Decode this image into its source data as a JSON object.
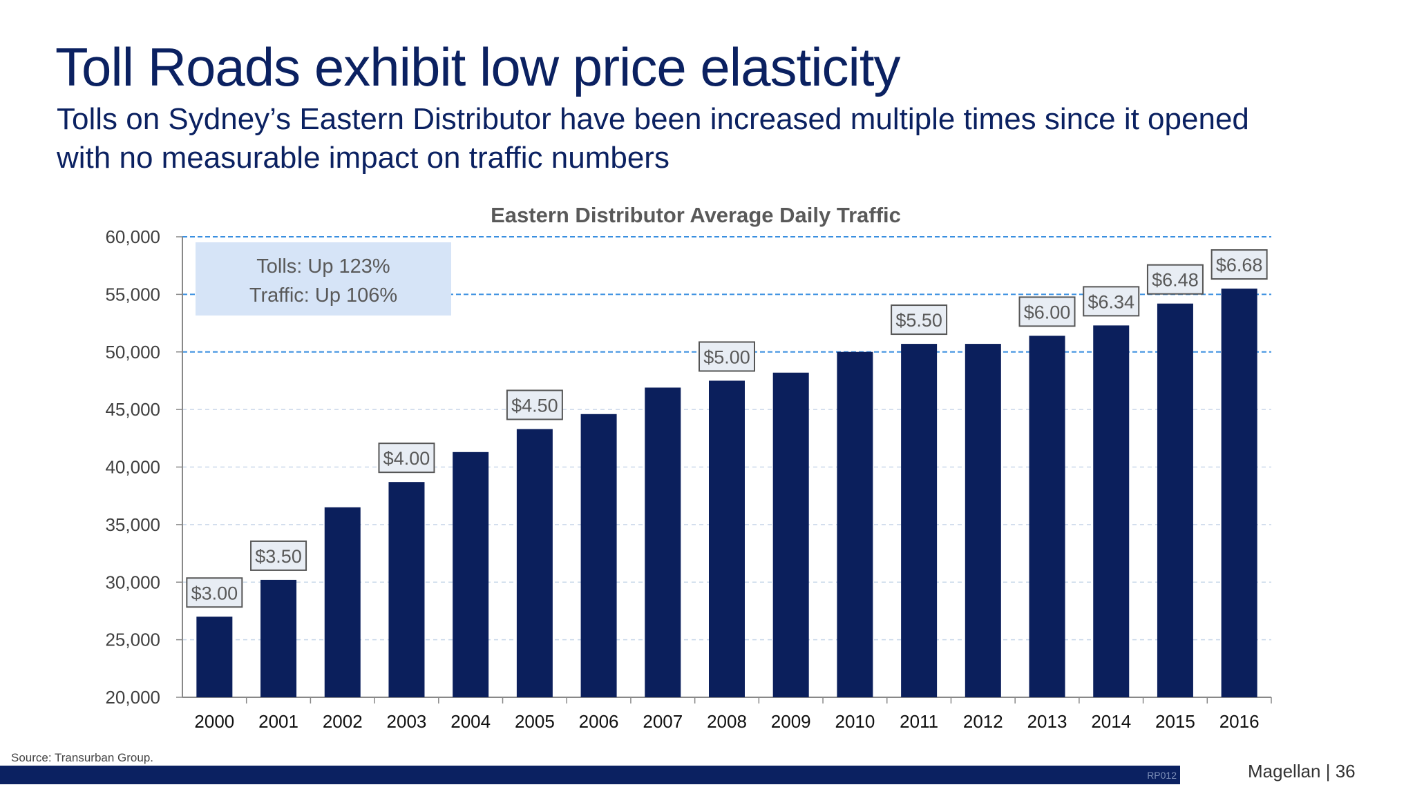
{
  "slide": {
    "title": "Toll Roads exhibit low price elasticity",
    "subtitle": "Tolls on Sydney’s Eastern Distributor have been increased multiple times since it opened with no measurable impact on traffic numbers",
    "source": "Source: Transurban Group.",
    "footer_code": "RP012",
    "footer_brand": "Magellan | 36"
  },
  "colors": {
    "bar": "#0b1f5c",
    "title": "#0b2161",
    "grid_dashed": "#3a8fe0",
    "grid_light": "#c9d8ea",
    "callout_fill": "#d6e4f7",
    "price_box_fill": "#e8edf4",
    "price_box_border": "#555555"
  },
  "chart_data": {
    "type": "bar",
    "title": "Eastern Distributor Average Daily Traffic",
    "categories": [
      "2000",
      "2001",
      "2002",
      "2003",
      "2004",
      "2005",
      "2006",
      "2007",
      "2008",
      "2009",
      "2010",
      "2011",
      "2012",
      "2013",
      "2014",
      "2015",
      "2016"
    ],
    "values": [
      27000,
      30200,
      36500,
      38700,
      41300,
      43300,
      44600,
      46900,
      47500,
      48200,
      50000,
      50700,
      50700,
      51400,
      52300,
      54200,
      55500
    ],
    "ylim": [
      20000,
      60000
    ],
    "yticks": [
      "20,000",
      "25,000",
      "30,000",
      "35,000",
      "40,000",
      "45,000",
      "50,000",
      "55,000",
      "60,000"
    ],
    "ytick_values": [
      20000,
      25000,
      30000,
      35000,
      40000,
      45000,
      50000,
      55000,
      60000
    ],
    "grid": true,
    "toll_labels": [
      {
        "year": "2000",
        "label": "$3.00"
      },
      {
        "year": "2001",
        "label": "$3.50"
      },
      {
        "year": "2003",
        "label": "$4.00"
      },
      {
        "year": "2005",
        "label": "$4.50"
      },
      {
        "year": "2008",
        "label": "$5.00"
      },
      {
        "year": "2011",
        "label": "$5.50"
      },
      {
        "year": "2013",
        "label": "$6.00"
      },
      {
        "year": "2014",
        "label": "$6.34"
      },
      {
        "year": "2015",
        "label": "$6.48"
      },
      {
        "year": "2016",
        "label": "$6.68"
      }
    ],
    "callout": [
      "Tolls: Up 123%",
      "Traffic: Up 106%"
    ]
  }
}
